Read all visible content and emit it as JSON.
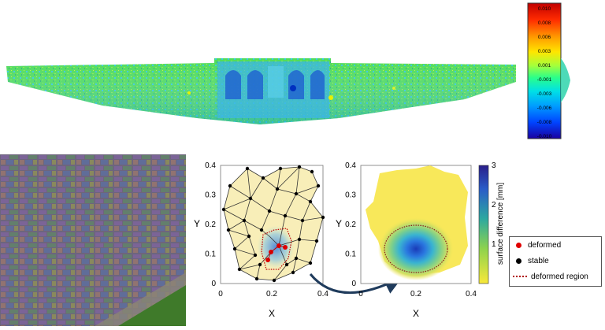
{
  "colorbar_top": {
    "ticks": [
      "0.010",
      "0.008",
      "0.006",
      "0.003",
      "0.001",
      "-0.001",
      "-0.003",
      "-0.006",
      "-0.008",
      "-0.010"
    ],
    "colors": [
      "#d10000",
      "#ff3c00",
      "#ff9a00",
      "#ffe000",
      "#b7ff2a",
      "#32ff78",
      "#00e6d2",
      "#00a8ff",
      "#005cff",
      "#1a00b0"
    ]
  },
  "middle_plot": {
    "x_axis_label": "X",
    "y_axis_label": "Y",
    "x_ticks": [
      "0",
      "0.2",
      "0.4"
    ],
    "y_ticks": [
      "0",
      "0.1",
      "0.2",
      "0.3",
      "0.4"
    ],
    "x_range": [
      0,
      0.4
    ],
    "y_range": [
      0,
      0.4
    ]
  },
  "right_plot": {
    "x_axis_label": "X",
    "y_axis_label": "Y",
    "x_ticks": [
      "0",
      "0.2",
      "0.4"
    ],
    "y_ticks": [
      "0",
      "0.1",
      "0.2",
      "0.3",
      "0.4"
    ],
    "colorbar_label": "surface difference [mm]",
    "colorbar_ticks": [
      "1",
      "2",
      "3"
    ],
    "colorbar_range": [
      0,
      3
    ]
  },
  "legend": {
    "items": [
      {
        "label": "deformed",
        "marker": "red-dot-icon",
        "color": "#e00000"
      },
      {
        "label": "stable",
        "marker": "black-dot-icon",
        "color": "#000000"
      },
      {
        "label": "deformed region",
        "marker": "dotted-line-icon",
        "color": "#b00000"
      }
    ]
  }
}
